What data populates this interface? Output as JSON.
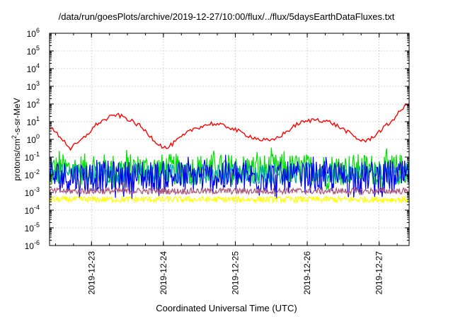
{
  "chart_data": {
    "type": "line",
    "title": "/data/run/goesPlots/archive/2019-12-27/10:00/flux/../flux/5daysEarthDataFluxes.txt",
    "xlabel": "Coordinated Universal Time (UTC)",
    "ylabel_parts": {
      "base": "protons/cm",
      "sup": "2",
      "rest": "-s-sr-MeV"
    },
    "y_scale": "log",
    "ylim": [
      1e-06,
      1000000.0
    ],
    "y_ticks": [
      {
        "value": 1e-06,
        "mant": "10",
        "exp": "-6"
      },
      {
        "value": 1e-05,
        "mant": "10",
        "exp": "-5"
      },
      {
        "value": 0.0001,
        "mant": "10",
        "exp": "-4"
      },
      {
        "value": 0.001,
        "mant": "10",
        "exp": "-3"
      },
      {
        "value": 0.01,
        "mant": "10",
        "exp": "-2"
      },
      {
        "value": 0.1,
        "mant": "10",
        "exp": "-1"
      },
      {
        "value": 1,
        "mant": "10",
        "exp": "0"
      },
      {
        "value": 10,
        "mant": "10",
        "exp": "1"
      },
      {
        "value": 100,
        "mant": "10",
        "exp": "2"
      },
      {
        "value": 1000,
        "mant": "10",
        "exp": "3"
      },
      {
        "value": 10000,
        "mant": "10",
        "exp": "4"
      },
      {
        "value": 100000,
        "mant": "10",
        "exp": "5"
      },
      {
        "value": 1000000,
        "mant": "10",
        "exp": "6"
      }
    ],
    "xlim": [
      "2019-12-22 10:00",
      "2019-12-27 10:00"
    ],
    "x_ticks": [
      {
        "value": "2019-12-23 00:00",
        "label": "2019-12-23"
      },
      {
        "value": "2019-12-24 00:00",
        "label": "2019-12-24"
      },
      {
        "value": "2019-12-25 00:00",
        "label": "2019-12-25"
      },
      {
        "value": "2019-12-26 00:00",
        "label": "2019-12-26"
      },
      {
        "value": "2019-12-27 00:00",
        "label": "2019-12-27"
      }
    ],
    "grid": true,
    "series": [
      {
        "color": "#00dd00",
        "noise": "wide",
        "points": [
          [
            "2019-12-22 10:00",
            0.02
          ],
          [
            "2019-12-23 10:00",
            0.02
          ],
          [
            "2019-12-24 10:00",
            0.02
          ],
          [
            "2019-12-25 10:00",
            0.02
          ],
          [
            "2019-12-26 10:00",
            0.02
          ],
          [
            "2019-12-27 10:00",
            0.02
          ]
        ]
      },
      {
        "color": "#00aaaa",
        "noise": "medium",
        "points": [
          [
            "2019-12-22 10:00",
            0.012
          ],
          [
            "2019-12-27 10:00",
            0.012
          ]
        ]
      },
      {
        "color": "#0000ee",
        "noise": "wide",
        "points": [
          [
            "2019-12-22 10:00",
            0.008
          ],
          [
            "2019-12-24 10:00",
            0.008
          ],
          [
            "2019-12-25 10:00",
            0.007
          ],
          [
            "2019-12-27 10:00",
            0.008
          ]
        ]
      },
      {
        "color": "#ffff00",
        "noise": "narrow",
        "points": [
          [
            "2019-12-22 10:00",
            0.0004
          ],
          [
            "2019-12-27 10:00",
            0.0004
          ]
        ]
      },
      {
        "color": "#aa5577",
        "noise": "narrow",
        "points": [
          [
            "2019-12-22 10:00",
            0.0012
          ],
          [
            "2019-12-27 10:00",
            0.0012
          ]
        ]
      },
      {
        "color": "#ff0000",
        "noise": "red",
        "points": [
          [
            "2019-12-22 10:00",
            5
          ],
          [
            "2019-12-22 14:00",
            1.2
          ],
          [
            "2019-12-22 17:00",
            0.3
          ],
          [
            "2019-12-22 21:00",
            1
          ],
          [
            "2019-12-23 02:00",
            8
          ],
          [
            "2019-12-23 08:00",
            25
          ],
          [
            "2019-12-23 11:00",
            18
          ],
          [
            "2019-12-23 16:00",
            6
          ],
          [
            "2019-12-23 19:00",
            2
          ],
          [
            "2019-12-23 22:00",
            0.6
          ],
          [
            "2019-12-24 01:00",
            0.3
          ],
          [
            "2019-12-24 05:00",
            1
          ],
          [
            "2019-12-24 10:00",
            4
          ],
          [
            "2019-12-24 16:00",
            8
          ],
          [
            "2019-12-24 22:00",
            5
          ],
          [
            "2019-12-25 03:00",
            2
          ],
          [
            "2019-12-25 08:00",
            1
          ],
          [
            "2019-12-25 12:00",
            0.8
          ],
          [
            "2019-12-25 16:00",
            2
          ],
          [
            "2019-12-25 21:00",
            8
          ],
          [
            "2019-12-26 03:00",
            14
          ],
          [
            "2019-12-26 08:00",
            9
          ],
          [
            "2019-12-26 13:00",
            3
          ],
          [
            "2019-12-26 17:00",
            1
          ],
          [
            "2019-12-26 20:00",
            0.8
          ],
          [
            "2019-12-26 23:00",
            2
          ],
          [
            "2019-12-27 04:00",
            10
          ],
          [
            "2019-12-27 08:00",
            60
          ],
          [
            "2019-12-27 10:00",
            100
          ]
        ]
      }
    ]
  }
}
